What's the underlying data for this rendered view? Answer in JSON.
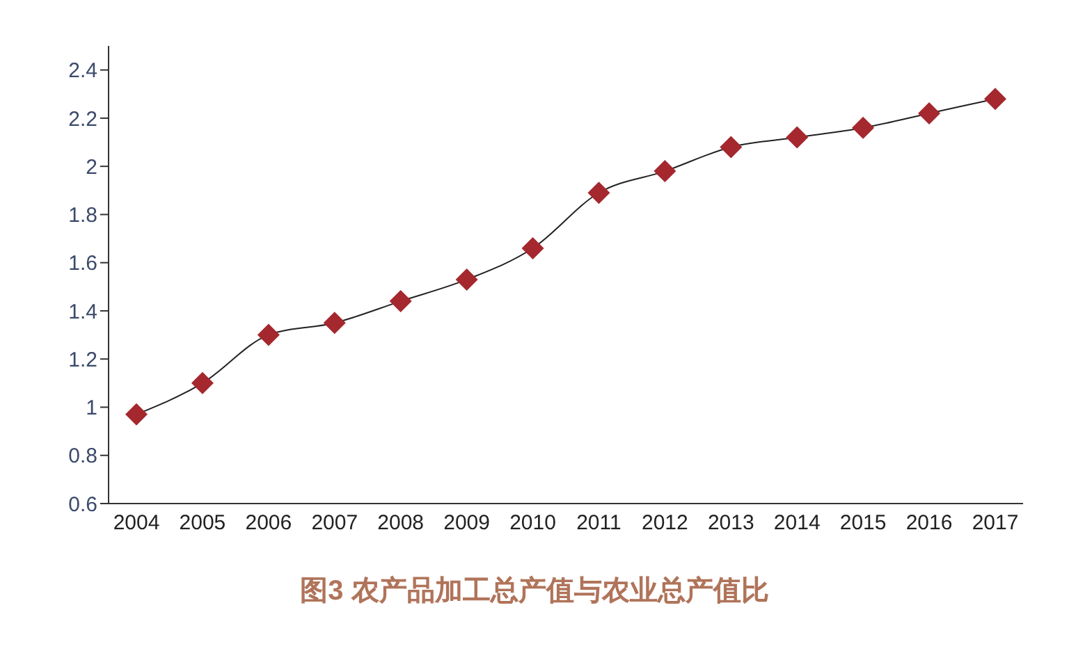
{
  "chart_data": {
    "type": "line",
    "title": "图3 农产品加工总产值与农业总产值比",
    "categories": [
      "2004",
      "2005",
      "2006",
      "2007",
      "2008",
      "2009",
      "2010",
      "2011",
      "2012",
      "2013",
      "2014",
      "2015",
      "2016",
      "2017"
    ],
    "series": [
      {
        "color": "#a4282e",
        "values": [
          0.97,
          1.1,
          1.3,
          1.35,
          1.44,
          1.53,
          1.66,
          1.89,
          1.98,
          2.08,
          2.12,
          2.16,
          2.22,
          2.28
        ]
      }
    ],
    "ylim": [
      0.6,
      2.5
    ],
    "yticks": [
      0.6,
      0.8,
      1,
      1.2,
      1.4,
      1.6,
      1.8,
      2,
      2.2,
      2.4
    ],
    "grid": false,
    "legend": false,
    "marker": "diamond",
    "line_style": "solid"
  }
}
